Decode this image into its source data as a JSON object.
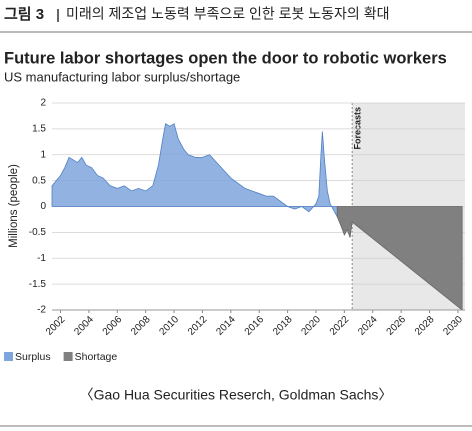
{
  "header": {
    "figure": "그림 3",
    "caption": "미래의 제조업 노동력 부족으로 인한 로봇 노동자의 확대"
  },
  "chart_data": {
    "type": "area",
    "title": "Future labor shortages open the door to robotic workers",
    "subtitle": "US manufacturing labor surplus/shortage",
    "y_label": "Millions (people)",
    "annotation": "Forecasts",
    "forecast_start": 2022.55,
    "source": "〈Gao Hua Securities Reserch, Goldman Sachs〉",
    "xlim": [
      2001.4,
      2030.5
    ],
    "xticks": [
      2002,
      2004,
      2006,
      2008,
      2010,
      2012,
      2014,
      2016,
      2018,
      2020,
      2022,
      2024,
      2026,
      2028,
      2030
    ],
    "ylim": [
      -2,
      2
    ],
    "yticks": [
      2,
      1.5,
      1,
      0.5,
      0,
      -0.5,
      -1,
      -1.5,
      -2
    ],
    "grid": true,
    "series": [
      {
        "name": "Surplus",
        "color": "#7fa6dc",
        "x": [
          2001.4,
          2001.7,
          2002,
          2002.3,
          2002.6,
          2002.9,
          2003.2,
          2003.5,
          2003.8,
          2004.2,
          2004.6,
          2005,
          2005.5,
          2006,
          2006.5,
          2007,
          2007.5,
          2008,
          2008.5,
          2008.9,
          2009.2,
          2009.4,
          2009.7,
          2010,
          2010.3,
          2010.7,
          2011,
          2011.5,
          2012,
          2012.5,
          2013,
          2013.5,
          2014,
          2014.5,
          2015,
          2015.5,
          2016,
          2016.5,
          2017,
          2017.5,
          2018,
          2018.5,
          2019,
          2019.5,
          2020,
          2020.2,
          2020.35,
          2020.45,
          2020.6,
          2020.8,
          2021,
          2021.2,
          2021.5
        ],
        "values": [
          0.4,
          0.5,
          0.6,
          0.75,
          0.95,
          0.9,
          0.85,
          0.95,
          0.8,
          0.75,
          0.6,
          0.55,
          0.4,
          0.35,
          0.4,
          0.3,
          0.35,
          0.3,
          0.4,
          0.8,
          1.3,
          1.6,
          1.55,
          1.6,
          1.3,
          1.1,
          1.0,
          0.95,
          0.95,
          1.0,
          0.85,
          0.7,
          0.55,
          0.45,
          0.35,
          0.3,
          0.25,
          0.2,
          0.2,
          0.1,
          0.0,
          -0.05,
          0.0,
          -0.1,
          0.05,
          0.2,
          1.0,
          1.45,
          0.9,
          0.3,
          0.05,
          -0.05,
          -0.2
        ]
      },
      {
        "name": "Shortage",
        "color": "#808080",
        "x": [
          2021.5,
          2021.8,
          2022,
          2022.2,
          2022.4,
          2022.55,
          2030.3
        ],
        "values": [
          -0.2,
          -0.4,
          -0.55,
          -0.45,
          -0.6,
          -0.3,
          -2.0
        ]
      }
    ]
  }
}
